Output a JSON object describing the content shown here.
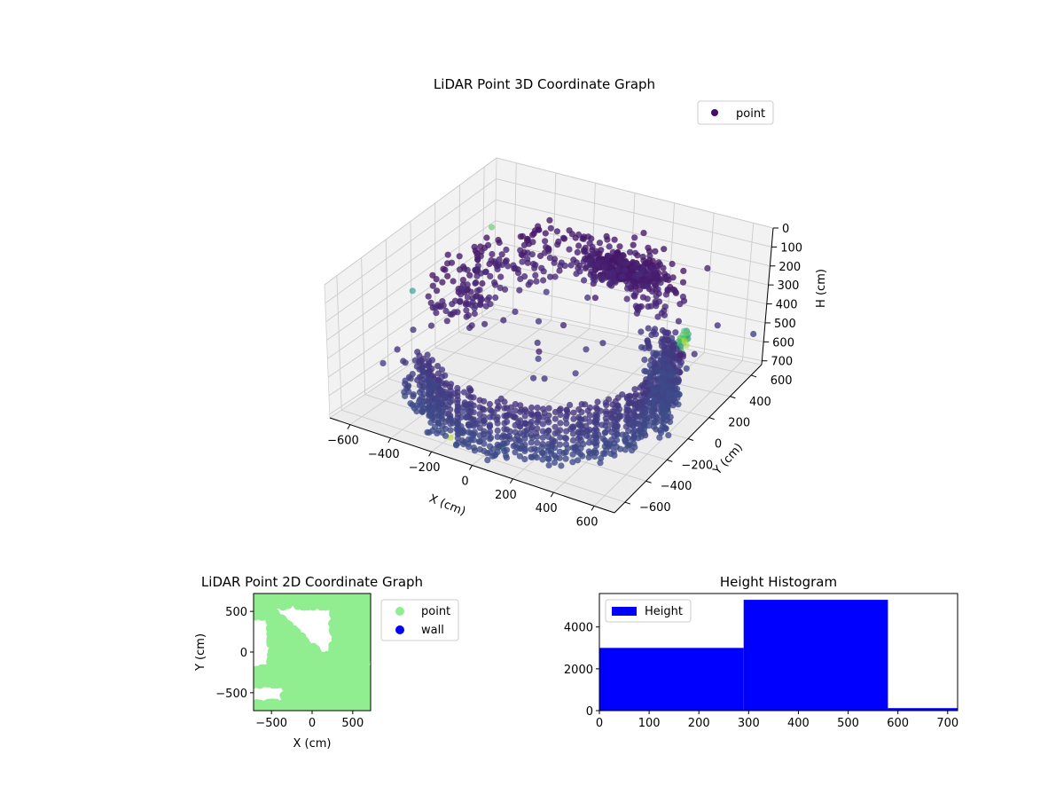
{
  "chart_data": [
    {
      "type": "scatter",
      "projection": "3d",
      "title": "LiDAR Point 3D Coordinate Graph",
      "xlabel": "X (cm)",
      "ylabel": "Y (cm)",
      "zlabel": "H (cm)",
      "xticks": [
        -600,
        -400,
        -200,
        0,
        200,
        400,
        600
      ],
      "yticks": [
        -600,
        -400,
        -200,
        0,
        200,
        400,
        600
      ],
      "zticks": [
        0,
        100,
        200,
        300,
        400,
        500,
        600,
        700
      ],
      "xlim": [
        -700,
        700
      ],
      "ylim": [
        -700,
        700
      ],
      "zlim": [
        0,
        720
      ],
      "z_inverted": true,
      "colormap": "viridis",
      "legend": {
        "placement": "upper-right",
        "entries": [
          {
            "label": "point",
            "color": "#440c6b"
          }
        ]
      },
      "grid": true
    },
    {
      "type": "scatter",
      "title": "LiDAR Point 2D Coordinate Graph",
      "xlabel": "X (cm)",
      "ylabel": "Y (cm)",
      "xticks": [
        -500,
        0,
        500
      ],
      "yticks": [
        -500,
        0,
        500
      ],
      "xlim": [
        -720,
        720
      ],
      "ylim": [
        -720,
        720
      ],
      "grid": false,
      "legend": {
        "placement": "outside-right",
        "entries": [
          {
            "label": "point",
            "color": "#90ee90"
          },
          {
            "label": "wall",
            "color": "#0000ff"
          }
        ]
      },
      "series": [
        {
          "name": "point",
          "color": "#90ee90"
        },
        {
          "name": "wall",
          "color": "#0000ff"
        }
      ]
    },
    {
      "type": "bar",
      "subtype": "histogram",
      "title": "Height Histogram",
      "xlim": [
        0,
        720
      ],
      "ylim": [
        0,
        5600
      ],
      "xticks": [
        0,
        100,
        200,
        300,
        400,
        500,
        600,
        700
      ],
      "yticks": [
        0,
        2000,
        4000
      ],
      "bins": [
        {
          "from": 0,
          "to": 290,
          "count": 3000
        },
        {
          "from": 290,
          "to": 580,
          "count": 5300
        },
        {
          "from": 580,
          "to": 720,
          "count": 120
        }
      ],
      "color": "#0000ff",
      "legend": {
        "placement": "upper-left",
        "entries": [
          {
            "label": "Height",
            "color": "#0000ff"
          }
        ]
      },
      "grid": false
    }
  ]
}
